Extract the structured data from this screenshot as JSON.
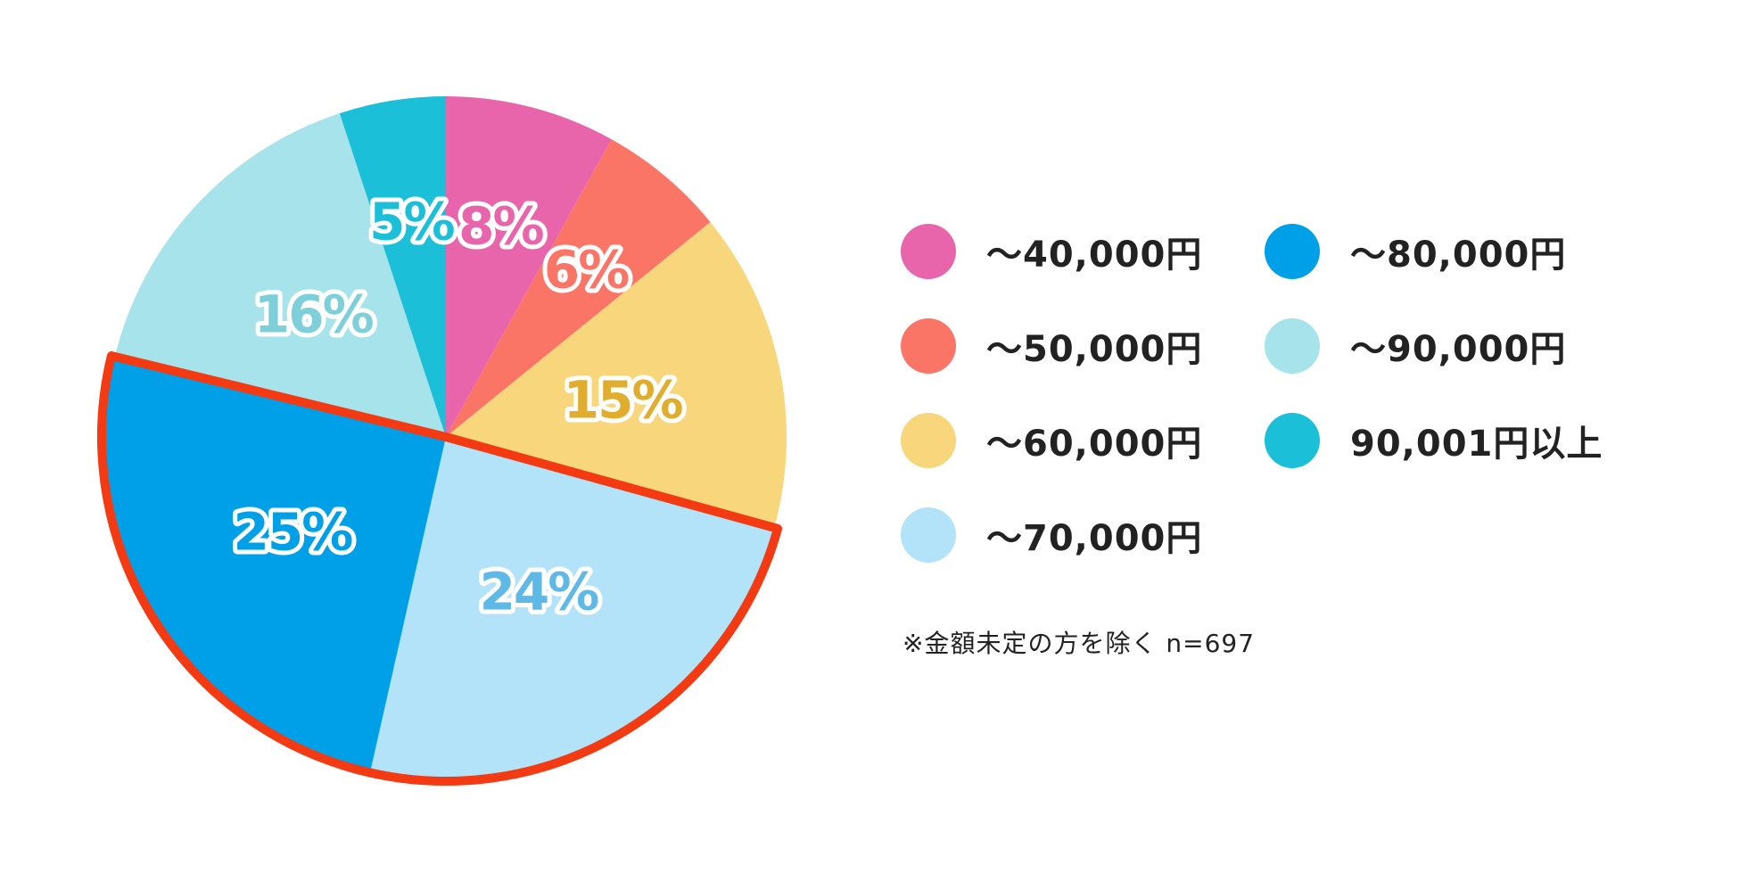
{
  "chart_data": {
    "type": "pie",
    "start": "top",
    "direction": "clockwise",
    "slices": [
      {
        "label": "～40,000円",
        "value": 8,
        "value_label": "8%",
        "color": "#E965AB",
        "label_color": "#E965AB"
      },
      {
        "label": "～50,000円",
        "value": 6,
        "value_label": "6%",
        "color": "#FB7566",
        "label_color": "#FB7566"
      },
      {
        "label": "～60,000円",
        "value": 15,
        "value_label": "15%",
        "color": "#F7D67C",
        "label_color": "#E0AE2C"
      },
      {
        "label": "～70,000円",
        "value": 24,
        "value_label": "24%",
        "color": "#B2E3F8",
        "label_color": "#5FB9E6",
        "highlighted": true
      },
      {
        "label": "～80,000円",
        "value": 25,
        "value_label": "25%",
        "color": "#00A0E9",
        "label_color": "#00A0E9",
        "highlighted": true
      },
      {
        "label": "～90,000円",
        "value": 16,
        "value_label": "16%",
        "color": "#A7E3EA",
        "label_color": "#7DD0DA"
      },
      {
        "label": "90,001円以上",
        "value": 5,
        "value_label": "5%",
        "color": "#1BBFD8",
        "label_color": "#1BBFD8"
      }
    ],
    "highlight_color": "#F33A12",
    "legend_placement": "right",
    "note": "※金額未定の方を除く n=697"
  },
  "legend": {
    "columns": [
      [
        "～40,000円",
        "～50,000円",
        "～60,000円",
        "～70,000円"
      ],
      [
        "～80,000円",
        "～90,000円",
        "90,001円以上"
      ]
    ]
  }
}
